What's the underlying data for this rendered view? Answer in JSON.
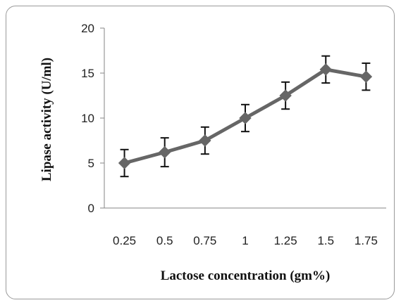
{
  "chart_data": {
    "type": "line",
    "title": "",
    "xlabel": "Lactose concentration (gm%)",
    "ylabel": "Lipase activity (U/ml)",
    "categories": [
      "0.25",
      "0.5",
      "0.75",
      "1",
      "1.25",
      "1.5",
      "1.75"
    ],
    "series": [
      {
        "values": [
          5.0,
          6.2,
          7.5,
          10.0,
          12.5,
          15.4,
          14.6
        ],
        "error": [
          1.5,
          1.6,
          1.5,
          1.5,
          1.5,
          1.5,
          1.5
        ],
        "color": "#666666",
        "marker": "diamond"
      }
    ],
    "ylim": [
      0,
      20
    ],
    "yticks": [
      0,
      5,
      10,
      15,
      20
    ],
    "grid": false,
    "legend": "none"
  }
}
